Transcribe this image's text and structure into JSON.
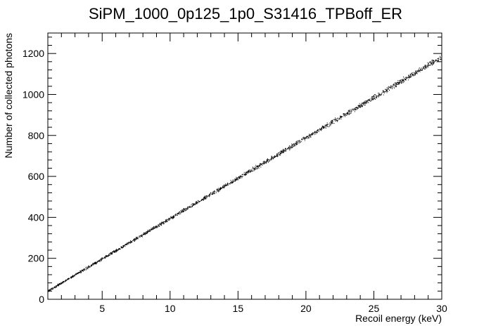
{
  "chart_data": {
    "type": "scatter",
    "title": "SiPM_1000_0p125_1p0_S31416_TPBoff_ER",
    "xlabel": "Recoil energy (keV)",
    "ylabel": "Number of collected photons",
    "xlim": [
      1,
      30
    ],
    "ylim": [
      0,
      1300
    ],
    "x_ticks": [
      5,
      10,
      15,
      20,
      25,
      30
    ],
    "y_ticks": [
      0,
      200,
      400,
      600,
      800,
      1000,
      1200
    ],
    "grid": false,
    "legend": "none",
    "marker_color": "#000000",
    "trend": {
      "slope": 39.4,
      "intercept": 2.5,
      "spread": 8
    },
    "series": [
      {
        "values_x": [
          1,
          5,
          10,
          15,
          20,
          25,
          30
        ],
        "values_y": [
          42,
          199,
          396,
          594,
          791,
          988,
          1185
        ]
      }
    ]
  }
}
